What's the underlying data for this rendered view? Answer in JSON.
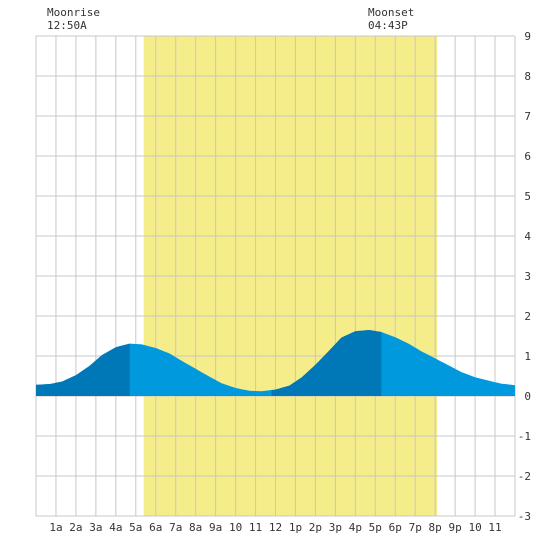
{
  "moon": {
    "rise_label": "Moonrise",
    "rise_time": "12:50A",
    "set_label": "Moonset",
    "set_time": "04:43P"
  },
  "colors": {
    "daylight": "#f5ec8a",
    "tide_fill": "#0099dd",
    "tide_dark": "#0077b6",
    "grid": "#c8c8c8",
    "frame": "#ffffff"
  },
  "chart_data": {
    "type": "area",
    "title": "",
    "xlabel": "",
    "ylabel": "",
    "xlim": [
      0,
      24
    ],
    "ylim": [
      -3,
      9
    ],
    "y_ticks": [
      "9",
      "8",
      "7",
      "6",
      "5",
      "4",
      "3",
      "2",
      "1",
      "0",
      "-1",
      "-2",
      "-3"
    ],
    "x_tick_labels": [
      "1a",
      "2a",
      "3a",
      "4a",
      "5a",
      "6a",
      "7a",
      "8a",
      "9a",
      "10",
      "11",
      "12",
      "1p",
      "2p",
      "3p",
      "4p",
      "5p",
      "6p",
      "7p",
      "8p",
      "9p",
      "10",
      "11"
    ],
    "daylight_hours": [
      5.4,
      20.1
    ],
    "dark_bands_hours": [
      [
        0,
        4.7
      ],
      [
        11.8,
        17.3
      ]
    ],
    "series": [
      {
        "x": [
          0,
          0.7,
          1.3,
          2,
          2.7,
          3.3,
          4,
          4.7,
          5.3,
          6,
          6.7,
          7.3,
          8,
          8.7,
          9.3,
          10,
          10.7,
          11.3,
          12,
          12.7,
          13.3,
          14,
          14.7,
          15.3,
          16,
          16.7,
          17.3,
          18,
          18.7,
          19.3,
          20,
          20.7,
          21.3,
          22,
          22.7,
          23.3,
          24
        ],
        "y": [
          0.28,
          0.3,
          0.36,
          0.52,
          0.76,
          1.02,
          1.22,
          1.31,
          1.29,
          1.2,
          1.06,
          0.88,
          0.68,
          0.48,
          0.32,
          0.2,
          0.13,
          0.12,
          0.16,
          0.26,
          0.46,
          0.78,
          1.14,
          1.46,
          1.62,
          1.65,
          1.6,
          1.47,
          1.3,
          1.12,
          0.94,
          0.76,
          0.6,
          0.47,
          0.38,
          0.31,
          0.27
        ]
      }
    ],
    "grid": true
  }
}
